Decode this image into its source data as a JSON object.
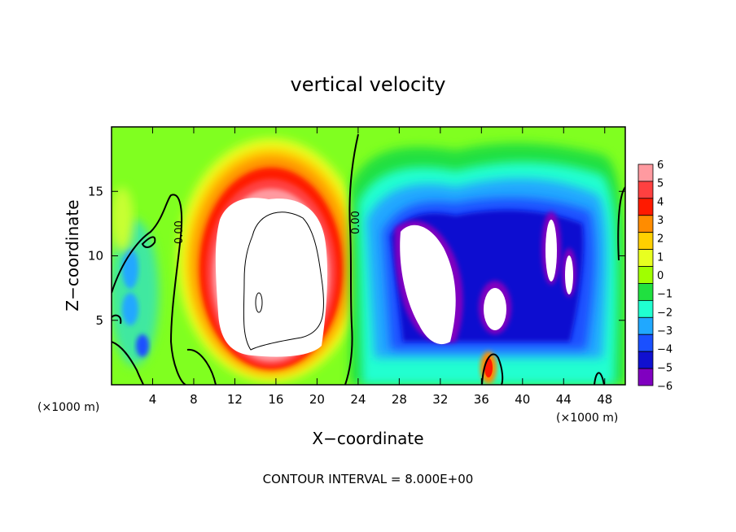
{
  "chart_data": {
    "type": "heatmap",
    "title": "vertical velocity",
    "xlabel": "X−coordinate",
    "ylabel": "Z−coordinate",
    "x_unit_left": "(×1000 m)",
    "x_unit_right": "(×1000 m)",
    "xlim": [
      0,
      50
    ],
    "ylim": [
      0,
      20
    ],
    "x_ticks": [
      4,
      8,
      12,
      16,
      20,
      24,
      28,
      32,
      36,
      40,
      44,
      48
    ],
    "x_tick_labels": [
      "4",
      "8",
      "12",
      "16",
      "20",
      "24",
      "28",
      "32",
      "36",
      "40",
      "44",
      "48"
    ],
    "y_ticks": [
      5,
      10,
      15
    ],
    "y_tick_labels": [
      "5",
      "10",
      "15"
    ],
    "colorbar": {
      "levels": [
        6,
        5,
        4,
        3,
        2,
        1,
        0,
        -1,
        -2,
        -3,
        -4,
        -5,
        -6
      ],
      "labels": [
        "6",
        "5",
        "4",
        "3",
        "2",
        "1",
        "0",
        "−1",
        "−2",
        "−3",
        "−4",
        "−5",
        "−6"
      ],
      "colors": [
        "#ff9aa0",
        "#ff4040",
        "#ff1a00",
        "#ff8c00",
        "#ffd000",
        "#e8ff20",
        "#a0ff00",
        "#20e040",
        "#20ffd0",
        "#20a8ff",
        "#1a50ff",
        "#1010d0",
        "#8000c0"
      ]
    },
    "contour_labels": [
      "0.00",
      "0.00"
    ],
    "contour_interval_note": "CONTOUR INTERVAL = 8.000E+00",
    "features": [
      {
        "kind": "updraft",
        "x_center": 15.5,
        "z_center": 10,
        "peak": 6
      },
      {
        "kind": "downdraft",
        "x_center": 31,
        "z_center": 9,
        "peak": -6
      },
      {
        "kind": "downdraft",
        "x_center": 37,
        "z_center": 6,
        "peak": -6
      },
      {
        "kind": "downdraft",
        "x_center": 43.5,
        "z_center": 11,
        "peak": -6
      }
    ]
  }
}
